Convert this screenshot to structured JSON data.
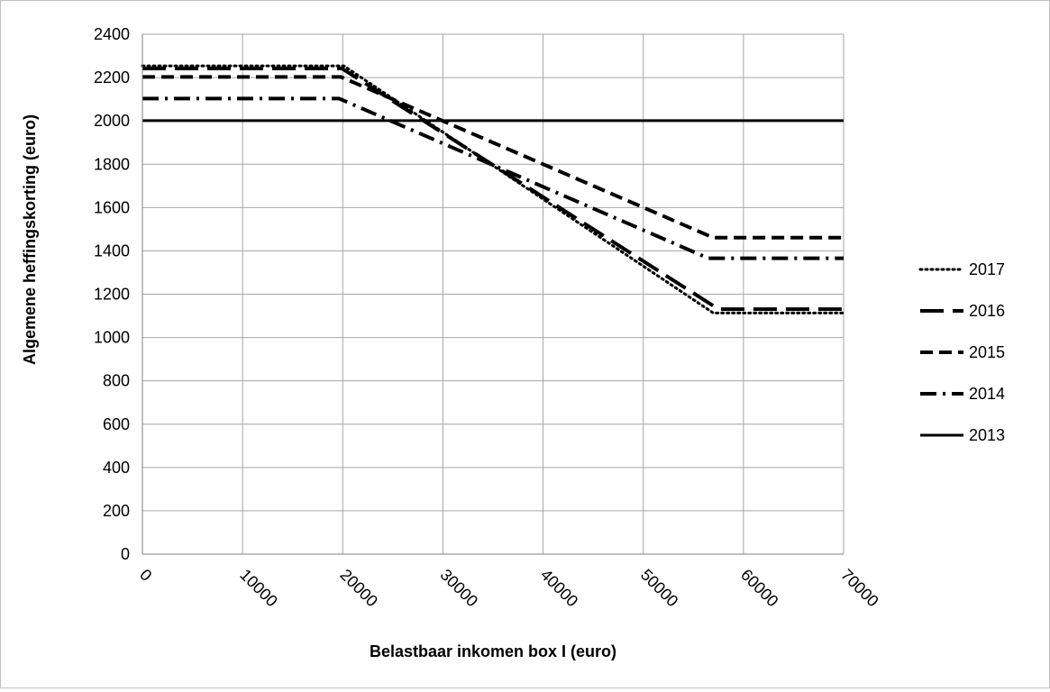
{
  "chart_data": {
    "type": "line",
    "title": "",
    "xlabel": "Belastbaar inkomen box I (euro)",
    "ylabel": "Algemene heffingskorting (euro)",
    "xlim": [
      0,
      70000
    ],
    "ylim": [
      0,
      2400
    ],
    "x_ticks": [
      "0",
      "10000",
      "20000",
      "30000",
      "40000",
      "50000",
      "60000",
      "70000"
    ],
    "y_ticks": [
      "0",
      "200",
      "400",
      "600",
      "800",
      "1000",
      "1200",
      "1400",
      "1600",
      "1800",
      "2000",
      "2200",
      "2400"
    ],
    "grid": true,
    "legend_position": "right",
    "series": [
      {
        "name": "2017",
        "color": "#000000",
        "dash": "dotted",
        "points": [
          [
            0,
            2254
          ],
          [
            20108,
            2254
          ],
          [
            57000,
            1113
          ],
          [
            70000,
            1113
          ]
        ]
      },
      {
        "name": "2016",
        "color": "#000000",
        "dash": "long-dash",
        "points": [
          [
            0,
            2242
          ],
          [
            19922,
            2242
          ],
          [
            57500,
            1131
          ],
          [
            70000,
            1131
          ]
        ]
      },
      {
        "name": "2015",
        "color": "#000000",
        "dash": "dash",
        "points": [
          [
            0,
            2203
          ],
          [
            19822,
            2203
          ],
          [
            57000,
            1461
          ],
          [
            70000,
            1461
          ]
        ]
      },
      {
        "name": "2014",
        "color": "#000000",
        "dash": "dash-dot",
        "points": [
          [
            0,
            2103
          ],
          [
            19645,
            2103
          ],
          [
            56495,
            1366
          ],
          [
            70000,
            1366
          ]
        ]
      },
      {
        "name": "2013",
        "color": "#000000",
        "dash": "solid",
        "points": [
          [
            0,
            2001
          ],
          [
            70000,
            2001
          ]
        ]
      }
    ]
  }
}
